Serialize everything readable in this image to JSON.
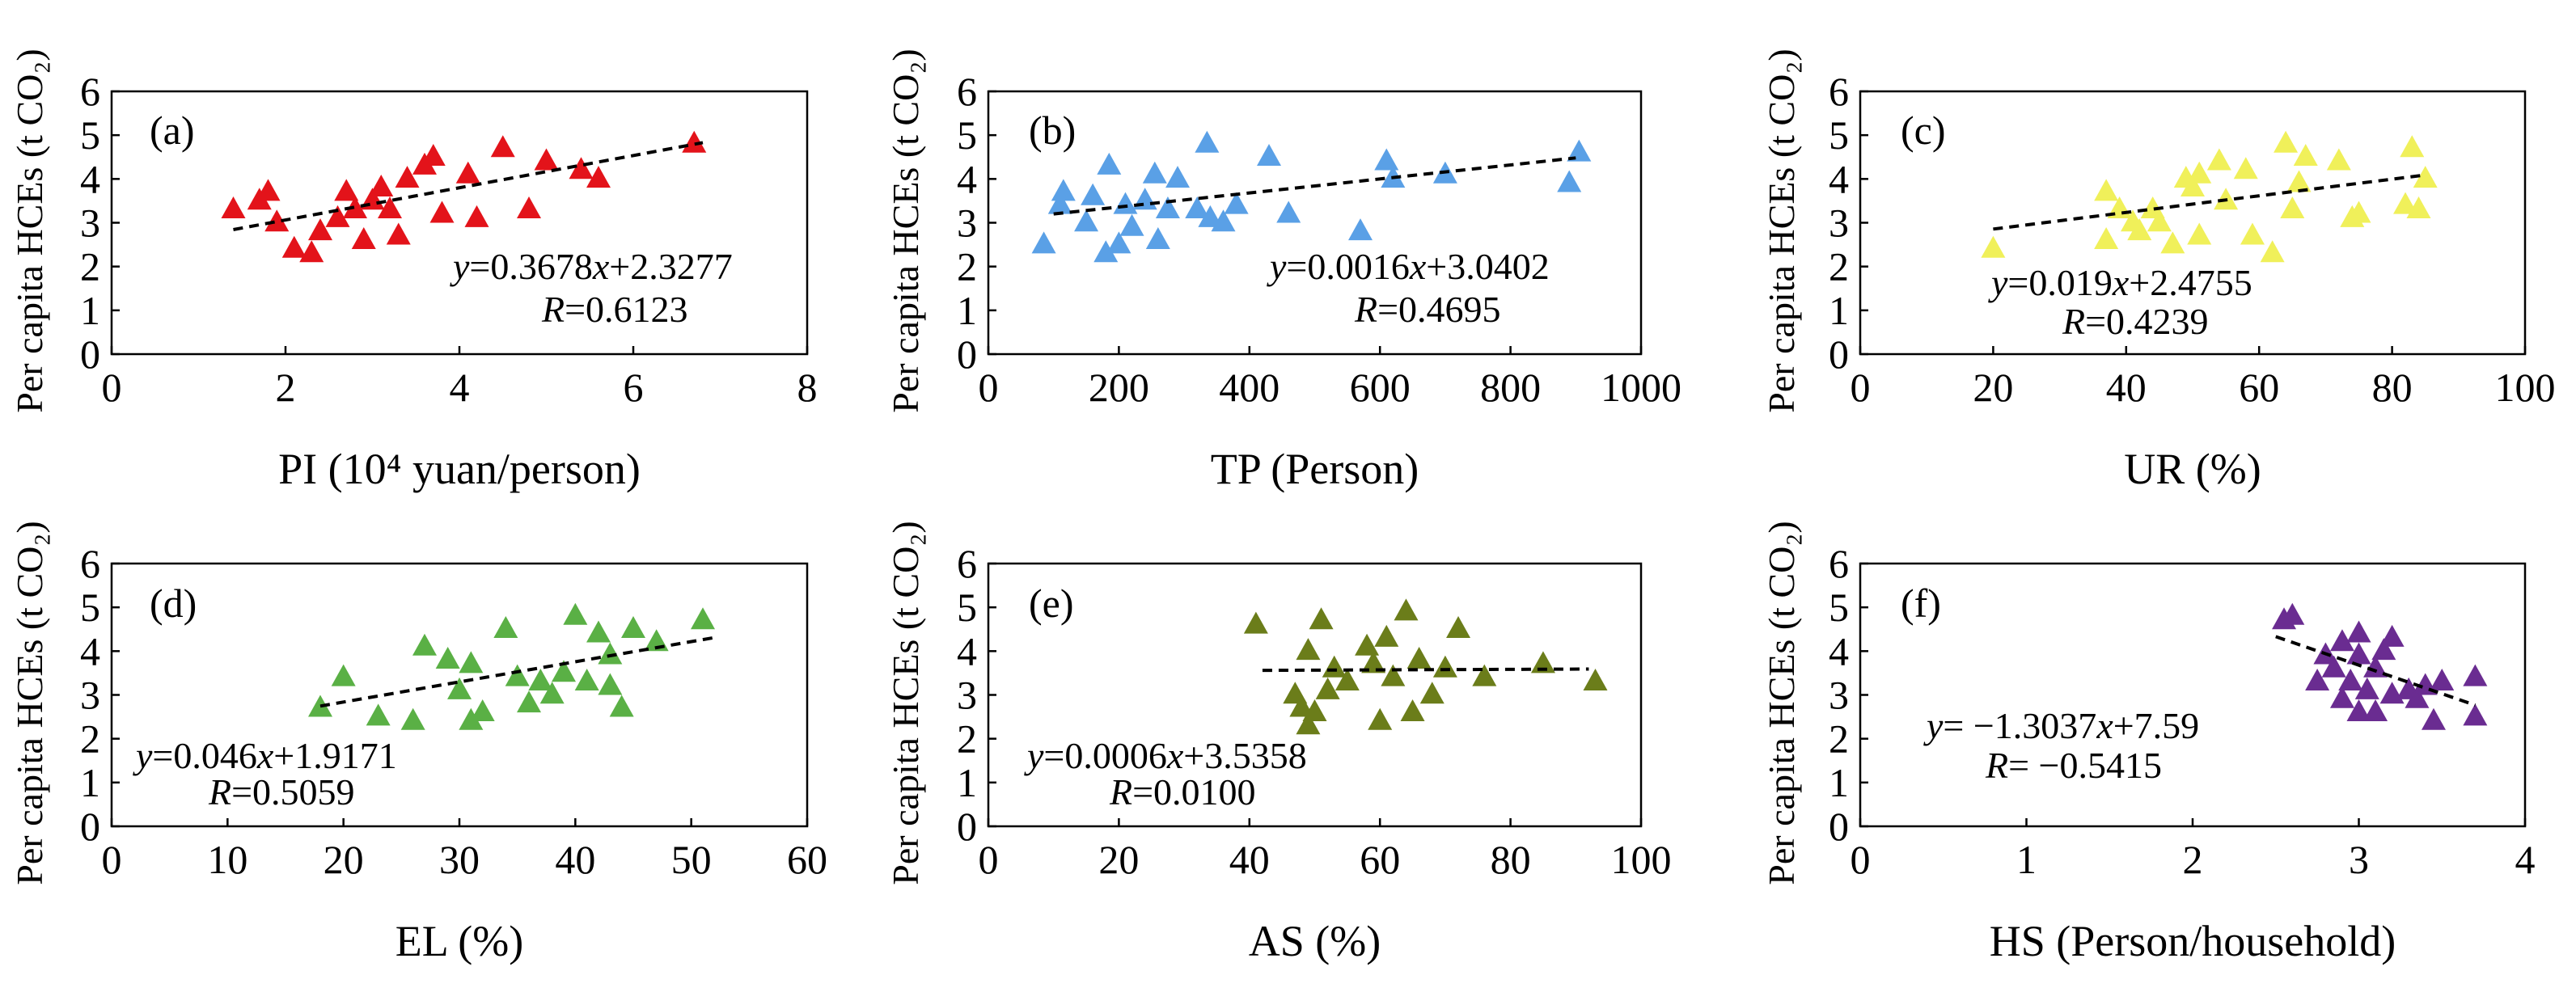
{
  "chart_data": [
    {
      "type": "scatter",
      "panel_label": "(a)",
      "xlabel": "PI (10⁴ yuan/person)",
      "ylabel": "Per capita HCEs (t CO₂)",
      "xlim": [
        0,
        8
      ],
      "ylim": [
        0,
        6
      ],
      "xticks": [
        "0",
        "2",
        "4",
        "6",
        "8"
      ],
      "yticks": [
        "0",
        "1",
        "2",
        "3",
        "4",
        "5",
        "6"
      ],
      "marker_color": "#e3131a",
      "fit": {
        "slope": 0.3678,
        "intercept": 2.3277,
        "x_range": [
          1.4,
          6.8
        ]
      },
      "equation": "y=0.3678x+2.3277",
      "r_label": "R=0.6123",
      "points": [
        {
          "x": 1.4,
          "y": 3.3
        },
        {
          "x": 1.7,
          "y": 3.5
        },
        {
          "x": 1.8,
          "y": 3.7
        },
        {
          "x": 1.9,
          "y": 3.0
        },
        {
          "x": 2.1,
          "y": 2.4
        },
        {
          "x": 2.3,
          "y": 2.3
        },
        {
          "x": 2.4,
          "y": 2.8
        },
        {
          "x": 2.6,
          "y": 3.1
        },
        {
          "x": 2.7,
          "y": 3.7
        },
        {
          "x": 2.8,
          "y": 3.3
        },
        {
          "x": 2.9,
          "y": 2.6
        },
        {
          "x": 3.0,
          "y": 3.5
        },
        {
          "x": 3.1,
          "y": 3.8
        },
        {
          "x": 3.2,
          "y": 3.3
        },
        {
          "x": 3.3,
          "y": 2.7
        },
        {
          "x": 3.4,
          "y": 4.0
        },
        {
          "x": 3.6,
          "y": 4.3
        },
        {
          "x": 3.7,
          "y": 4.5
        },
        {
          "x": 3.8,
          "y": 3.2
        },
        {
          "x": 4.1,
          "y": 4.1
        },
        {
          "x": 4.2,
          "y": 3.1
        },
        {
          "x": 4.5,
          "y": 4.7
        },
        {
          "x": 4.8,
          "y": 3.3
        },
        {
          "x": 5.0,
          "y": 4.4
        },
        {
          "x": 5.4,
          "y": 4.2
        },
        {
          "x": 5.6,
          "y": 4.0
        },
        {
          "x": 6.7,
          "y": 4.8
        }
      ]
    },
    {
      "type": "scatter",
      "panel_label": "(b)",
      "xlabel": "TP (Person)",
      "ylabel": "Per capita HCEs (t CO₂)",
      "xlim": [
        0,
        1000
      ],
      "ylim": [
        0,
        6
      ],
      "xticks": [
        "0",
        "200",
        "400",
        "600",
        "800",
        "1000"
      ],
      "yticks": [
        "0",
        "1",
        "2",
        "3",
        "4",
        "5",
        "6"
      ],
      "marker_color": "#5aa0e6",
      "fit": {
        "slope": 0.0016,
        "intercept": 3.0402,
        "x_range": [
          100,
          900
        ]
      },
      "equation": "y=0.0016x+3.0402",
      "r_label": "R=0.4695",
      "points": [
        {
          "x": 85,
          "y": 2.5
        },
        {
          "x": 110,
          "y": 3.4
        },
        {
          "x": 115,
          "y": 3.7
        },
        {
          "x": 150,
          "y": 3.0
        },
        {
          "x": 160,
          "y": 3.6
        },
        {
          "x": 180,
          "y": 2.3
        },
        {
          "x": 185,
          "y": 4.3
        },
        {
          "x": 200,
          "y": 2.5
        },
        {
          "x": 210,
          "y": 3.4
        },
        {
          "x": 220,
          "y": 2.9
        },
        {
          "x": 240,
          "y": 3.5
        },
        {
          "x": 255,
          "y": 4.1
        },
        {
          "x": 260,
          "y": 2.6
        },
        {
          "x": 275,
          "y": 3.3
        },
        {
          "x": 290,
          "y": 4.0
        },
        {
          "x": 320,
          "y": 3.3
        },
        {
          "x": 335,
          "y": 4.8
        },
        {
          "x": 340,
          "y": 3.1
        },
        {
          "x": 360,
          "y": 3.0
        },
        {
          "x": 380,
          "y": 3.4
        },
        {
          "x": 430,
          "y": 4.5
        },
        {
          "x": 460,
          "y": 3.2
        },
        {
          "x": 570,
          "y": 2.8
        },
        {
          "x": 610,
          "y": 4.4
        },
        {
          "x": 620,
          "y": 4.0
        },
        {
          "x": 700,
          "y": 4.1
        },
        {
          "x": 890,
          "y": 3.9
        },
        {
          "x": 905,
          "y": 4.6
        }
      ]
    },
    {
      "type": "scatter",
      "panel_label": "(c)",
      "xlabel": "UR (%)",
      "ylabel": "Per capita HCEs (t CO₂)",
      "xlim": [
        0,
        100
      ],
      "ylim": [
        0,
        6
      ],
      "xticks": [
        "0",
        "20",
        "40",
        "60",
        "80",
        "100"
      ],
      "yticks": [
        "0",
        "1",
        "2",
        "3",
        "4",
        "5",
        "6"
      ],
      "marker_color": "#f0f05a",
      "fit": {
        "slope": 0.019,
        "intercept": 2.4755,
        "x_range": [
          20,
          85
        ]
      },
      "equation": "y=0.019x+2.4755",
      "r_label": "R=0.4239",
      "points": [
        {
          "x": 20,
          "y": 2.4
        },
        {
          "x": 37,
          "y": 3.7
        },
        {
          "x": 37,
          "y": 2.6
        },
        {
          "x": 39,
          "y": 3.3
        },
        {
          "x": 41,
          "y": 3.0
        },
        {
          "x": 42,
          "y": 2.8
        },
        {
          "x": 44,
          "y": 3.3
        },
        {
          "x": 45,
          "y": 3.0
        },
        {
          "x": 47,
          "y": 2.5
        },
        {
          "x": 49,
          "y": 4.0
        },
        {
          "x": 50,
          "y": 3.8
        },
        {
          "x": 51,
          "y": 2.7
        },
        {
          "x": 51,
          "y": 4.1
        },
        {
          "x": 54,
          "y": 4.4
        },
        {
          "x": 55,
          "y": 3.5
        },
        {
          "x": 58,
          "y": 4.2
        },
        {
          "x": 59,
          "y": 2.7
        },
        {
          "x": 62,
          "y": 2.3
        },
        {
          "x": 64,
          "y": 4.8
        },
        {
          "x": 65,
          "y": 3.3
        },
        {
          "x": 66,
          "y": 3.9
        },
        {
          "x": 67,
          "y": 4.5
        },
        {
          "x": 72,
          "y": 4.4
        },
        {
          "x": 74,
          "y": 3.1
        },
        {
          "x": 75,
          "y": 3.2
        },
        {
          "x": 82,
          "y": 3.4
        },
        {
          "x": 83,
          "y": 4.7
        },
        {
          "x": 84,
          "y": 3.3
        },
        {
          "x": 85,
          "y": 4.0
        }
      ]
    },
    {
      "type": "scatter",
      "panel_label": "(d)",
      "xlabel": "EL (%)",
      "ylabel": "Per capita HCEs (t CO₂)",
      "xlim": [
        0,
        60
      ],
      "ylim": [
        0,
        6
      ],
      "xticks": [
        "0",
        "10",
        "20",
        "30",
        "40",
        "50",
        "60"
      ],
      "yticks": [
        "0",
        "1",
        "2",
        "3",
        "4",
        "5",
        "6"
      ],
      "marker_color": "#5ab045",
      "fit": {
        "slope": 0.046,
        "intercept": 1.9171,
        "x_range": [
          18,
          52
        ]
      },
      "equation": "y=0.046x+1.9171",
      "r_label": "R=0.5059",
      "points": [
        {
          "x": 18,
          "y": 2.7
        },
        {
          "x": 20,
          "y": 3.4
        },
        {
          "x": 23,
          "y": 2.5
        },
        {
          "x": 26,
          "y": 2.4
        },
        {
          "x": 27,
          "y": 4.1
        },
        {
          "x": 29,
          "y": 3.8
        },
        {
          "x": 30,
          "y": 3.1
        },
        {
          "x": 31,
          "y": 2.4
        },
        {
          "x": 31,
          "y": 3.7
        },
        {
          "x": 32,
          "y": 2.6
        },
        {
          "x": 34,
          "y": 4.5
        },
        {
          "x": 35,
          "y": 3.4
        },
        {
          "x": 36,
          "y": 2.8
        },
        {
          "x": 37,
          "y": 3.3
        },
        {
          "x": 38,
          "y": 3.0
        },
        {
          "x": 39,
          "y": 3.5
        },
        {
          "x": 40,
          "y": 4.8
        },
        {
          "x": 41,
          "y": 3.3
        },
        {
          "x": 42,
          "y": 4.4
        },
        {
          "x": 43,
          "y": 3.2
        },
        {
          "x": 43,
          "y": 3.9
        },
        {
          "x": 44,
          "y": 2.7
        },
        {
          "x": 45,
          "y": 4.5
        },
        {
          "x": 47,
          "y": 4.2
        },
        {
          "x": 51,
          "y": 4.7
        }
      ]
    },
    {
      "type": "scatter",
      "panel_label": "(e)",
      "xlabel": "AS (%)",
      "ylabel": "Per capita HCEs (t CO₂)",
      "xlim": [
        0,
        100
      ],
      "ylim": [
        0,
        6
      ],
      "xticks": [
        "0",
        "20",
        "40",
        "60",
        "80",
        "100"
      ],
      "yticks": [
        "0",
        "1",
        "2",
        "3",
        "4",
        "5",
        "6"
      ],
      "marker_color": "#6b7d1a",
      "fit": {
        "slope": 0.0006,
        "intercept": 3.5358,
        "x_range": [
          42,
          92
        ]
      },
      "equation": "y=0.0006x+3.5358",
      "r_label": "R=0.0100",
      "points": [
        {
          "x": 41,
          "y": 4.6
        },
        {
          "x": 47,
          "y": 3.0
        },
        {
          "x": 48,
          "y": 2.7
        },
        {
          "x": 49,
          "y": 2.3
        },
        {
          "x": 49,
          "y": 4.0
        },
        {
          "x": 50,
          "y": 2.6
        },
        {
          "x": 51,
          "y": 4.7
        },
        {
          "x": 52,
          "y": 3.1
        },
        {
          "x": 53,
          "y": 3.6
        },
        {
          "x": 55,
          "y": 3.3
        },
        {
          "x": 58,
          "y": 4.1
        },
        {
          "x": 59,
          "y": 3.7
        },
        {
          "x": 60,
          "y": 2.4
        },
        {
          "x": 61,
          "y": 4.3
        },
        {
          "x": 62,
          "y": 3.4
        },
        {
          "x": 64,
          "y": 4.9
        },
        {
          "x": 65,
          "y": 2.6
        },
        {
          "x": 66,
          "y": 3.8
        },
        {
          "x": 68,
          "y": 3.0
        },
        {
          "x": 70,
          "y": 3.6
        },
        {
          "x": 72,
          "y": 4.5
        },
        {
          "x": 76,
          "y": 3.4
        },
        {
          "x": 85,
          "y": 3.7
        },
        {
          "x": 93,
          "y": 3.3
        }
      ]
    },
    {
      "type": "scatter",
      "panel_label": "(f)",
      "xlabel": "HS (Person/household)",
      "ylabel": "Per capita HCEs (t CO₂)",
      "xlim": [
        0,
        4
      ],
      "ylim": [
        0,
        6
      ],
      "xticks": [
        "0",
        "1",
        "2",
        "3",
        "4"
      ],
      "yticks": [
        "0",
        "1",
        "2",
        "3",
        "4",
        "5",
        "6"
      ],
      "marker_color": "#6a2c91",
      "fit": {
        "slope": -1.3037,
        "intercept": 7.59,
        "x_range": [
          2.5,
          3.7
        ]
      },
      "equation": "y= −1.3037x+7.59",
      "r_label": "R= −0.5415",
      "points": [
        {
          "x": 2.55,
          "y": 4.7
        },
        {
          "x": 2.6,
          "y": 4.8
        },
        {
          "x": 2.75,
          "y": 3.3
        },
        {
          "x": 2.8,
          "y": 3.9
        },
        {
          "x": 2.85,
          "y": 3.6
        },
        {
          "x": 2.9,
          "y": 2.9
        },
        {
          "x": 2.9,
          "y": 4.2
        },
        {
          "x": 2.95,
          "y": 3.3
        },
        {
          "x": 3.0,
          "y": 2.6
        },
        {
          "x": 3.0,
          "y": 3.9
        },
        {
          "x": 3.0,
          "y": 4.4
        },
        {
          "x": 3.05,
          "y": 3.1
        },
        {
          "x": 3.1,
          "y": 2.6
        },
        {
          "x": 3.1,
          "y": 3.6
        },
        {
          "x": 3.15,
          "y": 4.0
        },
        {
          "x": 3.2,
          "y": 3.0
        },
        {
          "x": 3.2,
          "y": 4.3
        },
        {
          "x": 3.3,
          "y": 3.1
        },
        {
          "x": 3.35,
          "y": 2.9
        },
        {
          "x": 3.4,
          "y": 3.2
        },
        {
          "x": 3.45,
          "y": 2.4
        },
        {
          "x": 3.5,
          "y": 3.3
        },
        {
          "x": 3.7,
          "y": 3.4
        },
        {
          "x": 3.7,
          "y": 2.5
        }
      ]
    }
  ]
}
